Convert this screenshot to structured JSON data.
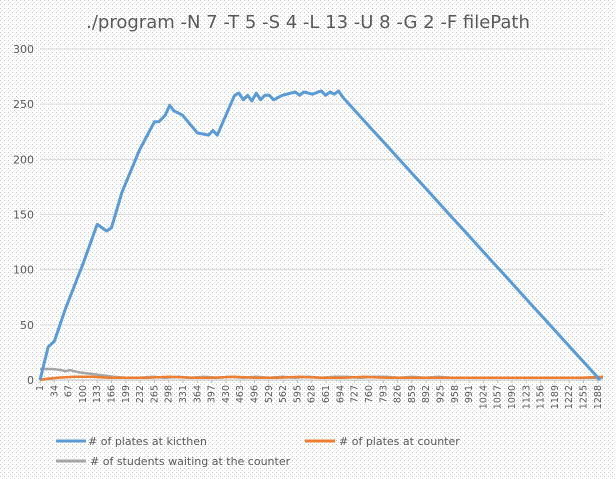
{
  "chart_data": {
    "type": "line",
    "title": "./program -N 7 -T 5 -S 4 -L 13 -U 8 -G 2 -F filePath",
    "xlabel": "",
    "ylabel": "",
    "ylim": [
      0,
      300
    ],
    "xlim": [
      1,
      1300
    ],
    "yticks": [
      0,
      50,
      100,
      150,
      200,
      250,
      300
    ],
    "xticks": [
      "1",
      "34",
      "67",
      "100",
      "133",
      "166",
      "199",
      "232",
      "265",
      "298",
      "331",
      "364",
      "397",
      "430",
      "463",
      "496",
      "529",
      "562",
      "595",
      "628",
      "661",
      "694",
      "727",
      "760",
      "793",
      "826",
      "859",
      "892",
      "925",
      "958",
      "991",
      "1024",
      "1057",
      "1090",
      "1123",
      "1156",
      "1189",
      "1222",
      "1255",
      "1288"
    ],
    "grid": true,
    "legend": "bottom",
    "series": [
      {
        "name": "# of plates at kicthen",
        "color": "#5B9BD5",
        "x": [
          1,
          20,
          34,
          60,
          100,
          133,
          155,
          166,
          190,
          230,
          265,
          275,
          290,
          300,
          310,
          330,
          364,
          390,
          400,
          410,
          430,
          450,
          460,
          470,
          480,
          490,
          500,
          510,
          520,
          530,
          540,
          560,
          590,
          600,
          610,
          630,
          650,
          660,
          670,
          680,
          690,
          700,
          1293
        ],
        "y": [
          0,
          30,
          35,
          65,
          105,
          141,
          135,
          138,
          170,
          208,
          234,
          234,
          240,
          249,
          244,
          240,
          224,
          222,
          226,
          222,
          240,
          258,
          260,
          254,
          258,
          253,
          260,
          254,
          258,
          258,
          254,
          258,
          261,
          258,
          261,
          259,
          262,
          258,
          261,
          259,
          262,
          256,
          0
        ]
      },
      {
        "name": "# of plates at counter",
        "color": "#ED7D31",
        "x": [
          1,
          15,
          40,
          80,
          120,
          160,
          200,
          250,
          300,
          350,
          400,
          450,
          500,
          550,
          600,
          650,
          700,
          750,
          800,
          850,
          900,
          950,
          1000,
          1050,
          1100,
          1150,
          1200,
          1250,
          1300
        ],
        "y": [
          0,
          1,
          2,
          3,
          3,
          2,
          2,
          2,
          3,
          2,
          2,
          3,
          2,
          2,
          3,
          2,
          2,
          3,
          2,
          2,
          2,
          2,
          2,
          2,
          2,
          2,
          2,
          2,
          3
        ]
      },
      {
        "name": "# of students waiting at the counter",
        "color": "#A5A5A5",
        "x": [
          1,
          10,
          30,
          50,
          60,
          70,
          90,
          110,
          130,
          150,
          170,
          200,
          230,
          260,
          290,
          320,
          350,
          380,
          410,
          440,
          470,
          500,
          530,
          560,
          590,
          620,
          650,
          680,
          710,
          740,
          770,
          800,
          830,
          860,
          890,
          920,
          950,
          1000,
          1050,
          1100,
          1150,
          1200,
          1250,
          1300
        ],
        "y": [
          10,
          10,
          10,
          9,
          8,
          9,
          7,
          6,
          5,
          4,
          3,
          2,
          2,
          3,
          2,
          3,
          2,
          3,
          2,
          3,
          2,
          3,
          2,
          3,
          2,
          3,
          2,
          3,
          3,
          2,
          3,
          3,
          2,
          3,
          2,
          3,
          2,
          2,
          2,
          2,
          2,
          2,
          2,
          2
        ]
      }
    ]
  }
}
